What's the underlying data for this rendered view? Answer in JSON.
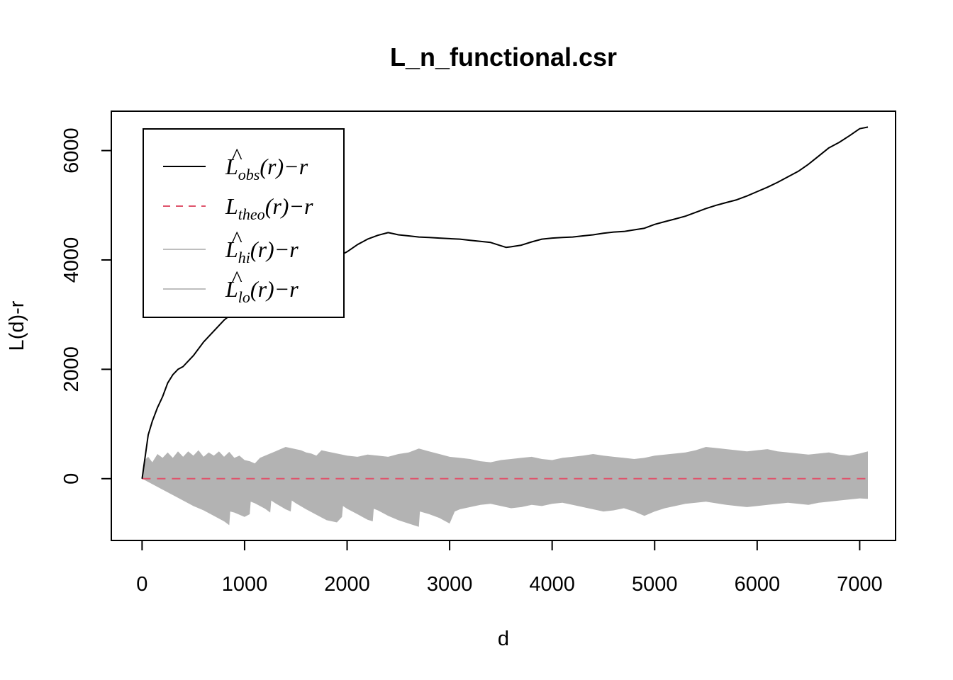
{
  "chart_data": {
    "type": "line",
    "title": "L_n_functional.csr",
    "xlabel": "d",
    "ylabel": "L(d)-r",
    "xlim": [
      -300,
      7350
    ],
    "ylim": [
      -1130,
      6720
    ],
    "xticks": [
      0,
      1000,
      2000,
      3000,
      4000,
      5000,
      6000,
      7000
    ],
    "xtick_labels": [
      "0",
      "1000",
      "2000",
      "3000",
      "4000",
      "5000",
      "6000",
      "7000"
    ],
    "yticks": [
      0,
      2000,
      4000,
      6000
    ],
    "ytick_labels": [
      "0",
      "2000",
      "4000",
      "6000"
    ],
    "grid": false,
    "legend_position": "top-left",
    "colors": {
      "obs": "#000000",
      "theo": "#DF536B",
      "envelope": "#B3B3B3",
      "legend_band": "#BEBEBE"
    },
    "legend": [
      {
        "base": "L",
        "hat": "^",
        "sub": "obs",
        "suffix": "(r)−r",
        "style": "solid",
        "color": "#000000"
      },
      {
        "base": "L",
        "hat": "",
        "sub": "theo",
        "suffix": "(r)−r",
        "style": "dashed",
        "color": "#DF536B"
      },
      {
        "base": "L",
        "hat": "^",
        "sub": "hi",
        "suffix": "(r)−r",
        "style": "solid",
        "color": "#BEBEBE"
      },
      {
        "base": "L",
        "hat": "^",
        "sub": "lo",
        "suffix": "(r)−r",
        "style": "solid",
        "color": "#BEBEBE"
      }
    ],
    "series": [
      {
        "name": "obs",
        "x": [
          0,
          30,
          60,
          100,
          150,
          200,
          250,
          300,
          350,
          400,
          450,
          500,
          600,
          700,
          800,
          900,
          1000,
          1100,
          1200,
          1300,
          1400,
          1500,
          1600,
          1700,
          1800,
          1900,
          2000,
          2100,
          2200,
          2300,
          2400,
          2450,
          2500,
          2600,
          2700,
          2800,
          2900,
          3000,
          3100,
          3200,
          3300,
          3400,
          3500,
          3550,
          3600,
          3700,
          3800,
          3900,
          4000,
          4100,
          4200,
          4300,
          4400,
          4500,
          4600,
          4700,
          4800,
          4900,
          5000,
          5100,
          5200,
          5300,
          5400,
          5500,
          5600,
          5700,
          5800,
          5900,
          6000,
          6100,
          6200,
          6300,
          6400,
          6500,
          6600,
          6700,
          6800,
          6900,
          7000,
          7080
        ],
        "y": [
          0,
          400,
          800,
          1050,
          1300,
          1500,
          1750,
          1900,
          2000,
          2050,
          2150,
          2250,
          2500,
          2700,
          2900,
          3050,
          3200,
          3300,
          3450,
          3550,
          3650,
          3720,
          3800,
          3870,
          3950,
          4050,
          4150,
          4280,
          4380,
          4450,
          4500,
          4480,
          4460,
          4440,
          4420,
          4410,
          4400,
          4390,
          4380,
          4360,
          4340,
          4320,
          4260,
          4230,
          4240,
          4270,
          4330,
          4380,
          4400,
          4410,
          4420,
          4440,
          4460,
          4490,
          4510,
          4520,
          4550,
          4580,
          4650,
          4700,
          4750,
          4800,
          4870,
          4940,
          5000,
          5050,
          5100,
          5170,
          5250,
          5330,
          5420,
          5520,
          5620,
          5750,
          5900,
          6050,
          6150,
          6270,
          6400,
          6430
        ]
      },
      {
        "name": "theo",
        "x": [
          0,
          7080
        ],
        "y": [
          0,
          0
        ]
      },
      {
        "name": "hi",
        "x": [
          0,
          30,
          60,
          100,
          150,
          200,
          250,
          300,
          350,
          400,
          450,
          500,
          550,
          600,
          650,
          700,
          750,
          800,
          850,
          900,
          950,
          1000,
          1050,
          1100,
          1150,
          1200,
          1250,
          1300,
          1350,
          1400,
          1450,
          1500,
          1550,
          1600,
          1650,
          1700,
          1750,
          1800,
          1850,
          1900,
          1950,
          2000,
          2100,
          2200,
          2300,
          2400,
          2500,
          2600,
          2700,
          2800,
          2900,
          3000,
          3100,
          3200,
          3300,
          3400,
          3500,
          3600,
          3700,
          3800,
          3900,
          4000,
          4100,
          4200,
          4300,
          4400,
          4500,
          4600,
          4700,
          4800,
          4900,
          5000,
          5100,
          5200,
          5300,
          5400,
          5500,
          5600,
          5700,
          5800,
          5900,
          6000,
          6100,
          6200,
          6300,
          6400,
          6500,
          6600,
          6700,
          6800,
          6900,
          7000,
          7080
        ],
        "y": [
          0,
          350,
          400,
          300,
          450,
          380,
          480,
          380,
          500,
          400,
          500,
          420,
          520,
          400,
          480,
          420,
          500,
          400,
          490,
          380,
          420,
          340,
          320,
          280,
          380,
          420,
          460,
          500,
          540,
          580,
          560,
          540,
          520,
          480,
          460,
          420,
          520,
          500,
          480,
          460,
          440,
          420,
          400,
          440,
          420,
          400,
          450,
          480,
          550,
          500,
          450,
          400,
          380,
          360,
          320,
          300,
          340,
          360,
          380,
          400,
          360,
          340,
          380,
          400,
          420,
          450,
          420,
          400,
          380,
          360,
          380,
          420,
          440,
          460,
          480,
          520,
          580,
          560,
          540,
          520,
          500,
          520,
          540,
          500,
          480,
          460,
          440,
          460,
          480,
          440,
          420,
          460,
          500
        ]
      },
      {
        "name": "lo",
        "x": [
          0,
          100,
          200,
          300,
          400,
          500,
          600,
          700,
          800,
          850,
          860,
          900,
          1000,
          1050,
          1060,
          1100,
          1200,
          1250,
          1260,
          1300,
          1400,
          1450,
          1460,
          1500,
          1600,
          1700,
          1800,
          1900,
          1950,
          1960,
          2000,
          2100,
          2200,
          2250,
          2260,
          2300,
          2400,
          2500,
          2600,
          2700,
          2710,
          2800,
          2900,
          3000,
          3050,
          3100,
          3200,
          3300,
          3400,
          3500,
          3600,
          3700,
          3800,
          3900,
          4000,
          4100,
          4200,
          4300,
          4400,
          4500,
          4600,
          4700,
          4800,
          4900,
          5000,
          5100,
          5200,
          5300,
          5400,
          5500,
          5600,
          5700,
          5800,
          5900,
          6000,
          6100,
          6200,
          6300,
          6400,
          6500,
          6600,
          6700,
          6800,
          6900,
          7000,
          7080
        ],
        "y": [
          0,
          -100,
          -200,
          -300,
          -400,
          -500,
          -580,
          -680,
          -780,
          -850,
          -600,
          -620,
          -700,
          -650,
          -420,
          -450,
          -550,
          -620,
          -400,
          -450,
          -560,
          -600,
          -400,
          -450,
          -560,
          -660,
          -760,
          -800,
          -700,
          -500,
          -550,
          -650,
          -750,
          -780,
          -550,
          -580,
          -680,
          -760,
          -820,
          -880,
          -600,
          -650,
          -720,
          -820,
          -600,
          -560,
          -520,
          -480,
          -460,
          -500,
          -540,
          -520,
          -480,
          -500,
          -460,
          -440,
          -480,
          -520,
          -560,
          -600,
          -580,
          -540,
          -600,
          -680,
          -600,
          -540,
          -500,
          -460,
          -440,
          -420,
          -450,
          -480,
          -500,
          -520,
          -500,
          -480,
          -460,
          -440,
          -460,
          -480,
          -440,
          -420,
          -400,
          -380,
          -360,
          -370
        ]
      }
    ]
  }
}
